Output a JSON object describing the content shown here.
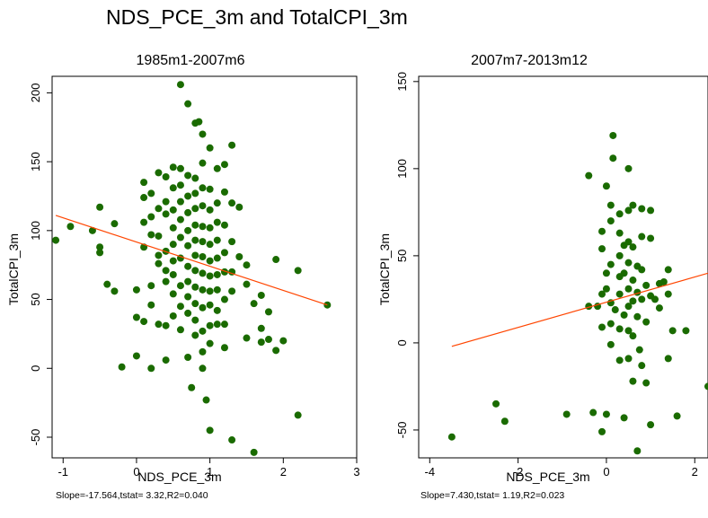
{
  "figure": {
    "title": "NDS_PCE_3m and TotalCPI_3m"
  },
  "colors": {
    "points": "#1a6b00",
    "fit_line": "#ff4500",
    "frame": "#000000"
  },
  "chart_data": [
    {
      "type": "scatter",
      "title": "1985m1-2007m6",
      "xlabel": "NDS_PCE_3m",
      "ylabel": "TotalCPI_3m",
      "xlim": [
        -1.15,
        3.0
      ],
      "ylim": [
        -65,
        212
      ],
      "xticks": [
        -1,
        0,
        1,
        2,
        3
      ],
      "yticks": [
        -50,
        0,
        50,
        100,
        150,
        200
      ],
      "note": "Slope=-17.564,tstat= 3.32,R2=0.040",
      "fit_line": {
        "x": [
          -1.1,
          2.6
        ],
        "y": [
          111,
          46
        ]
      },
      "points": [
        [
          -1.1,
          93
        ],
        [
          -0.9,
          103
        ],
        [
          -0.6,
          100
        ],
        [
          -0.5,
          117
        ],
        [
          -0.5,
          88
        ],
        [
          -0.5,
          84
        ],
        [
          -0.4,
          61
        ],
        [
          -0.3,
          105
        ],
        [
          -0.3,
          56
        ],
        [
          -0.2,
          1
        ],
        [
          0.0,
          37
        ],
        [
          0.0,
          9
        ],
        [
          0.0,
          57
        ],
        [
          0.1,
          135
        ],
        [
          0.1,
          124
        ],
        [
          0.1,
          106
        ],
        [
          0.1,
          88
        ],
        [
          0.1,
          34
        ],
        [
          0.2,
          127
        ],
        [
          0.2,
          110
        ],
        [
          0.2,
          97
        ],
        [
          0.2,
          60
        ],
        [
          0.2,
          46
        ],
        [
          0.2,
          0
        ],
        [
          0.3,
          142
        ],
        [
          0.3,
          116
        ],
        [
          0.3,
          96
        ],
        [
          0.3,
          82
        ],
        [
          0.3,
          76
        ],
        [
          0.3,
          32
        ],
        [
          0.4,
          139
        ],
        [
          0.4,
          121
        ],
        [
          0.4,
          112
        ],
        [
          0.4,
          85
        ],
        [
          0.4,
          71
        ],
        [
          0.4,
          63
        ],
        [
          0.4,
          31
        ],
        [
          0.4,
          6
        ],
        [
          0.5,
          146
        ],
        [
          0.5,
          131
        ],
        [
          0.5,
          115
        ],
        [
          0.5,
          102
        ],
        [
          0.5,
          90
        ],
        [
          0.5,
          78
        ],
        [
          0.5,
          68
        ],
        [
          0.5,
          54
        ],
        [
          0.5,
          38
        ],
        [
          0.6,
          206
        ],
        [
          0.6,
          145
        ],
        [
          0.6,
          133
        ],
        [
          0.6,
          121
        ],
        [
          0.6,
          108
        ],
        [
          0.6,
          95
        ],
        [
          0.6,
          80
        ],
        [
          0.6,
          60
        ],
        [
          0.6,
          45
        ],
        [
          0.6,
          28
        ],
        [
          0.7,
          192
        ],
        [
          0.7,
          140
        ],
        [
          0.7,
          125
        ],
        [
          0.7,
          113
        ],
        [
          0.7,
          100
        ],
        [
          0.7,
          89
        ],
        [
          0.7,
          74
        ],
        [
          0.7,
          63
        ],
        [
          0.7,
          52
        ],
        [
          0.7,
          40
        ],
        [
          0.7,
          8
        ],
        [
          0.75,
          -14
        ],
        [
          0.8,
          178
        ],
        [
          0.8,
          138
        ],
        [
          0.8,
          127
        ],
        [
          0.8,
          116
        ],
        [
          0.8,
          104
        ],
        [
          0.8,
          93
        ],
        [
          0.8,
          82
        ],
        [
          0.8,
          71
        ],
        [
          0.8,
          59
        ],
        [
          0.8,
          47
        ],
        [
          0.8,
          35
        ],
        [
          0.8,
          24
        ],
        [
          0.85,
          179
        ],
        [
          0.9,
          170
        ],
        [
          0.9,
          149
        ],
        [
          0.9,
          131
        ],
        [
          0.9,
          118
        ],
        [
          0.9,
          103
        ],
        [
          0.9,
          92
        ],
        [
          0.9,
          81
        ],
        [
          0.9,
          69
        ],
        [
          0.9,
          57
        ],
        [
          0.9,
          44
        ],
        [
          0.9,
          27
        ],
        [
          0.9,
          12
        ],
        [
          0.9,
          0
        ],
        [
          0.95,
          -23
        ],
        [
          1.0,
          160
        ],
        [
          1.0,
          130
        ],
        [
          1.0,
          115
        ],
        [
          1.0,
          102
        ],
        [
          1.0,
          90
        ],
        [
          1.0,
          78
        ],
        [
          1.0,
          67
        ],
        [
          1.0,
          56
        ],
        [
          1.0,
          46
        ],
        [
          1.0,
          31
        ],
        [
          1.0,
          18
        ],
        [
          1.0,
          -45
        ],
        [
          1.1,
          145
        ],
        [
          1.1,
          120
        ],
        [
          1.1,
          106
        ],
        [
          1.1,
          93
        ],
        [
          1.1,
          80
        ],
        [
          1.1,
          68
        ],
        [
          1.1,
          57
        ],
        [
          1.1,
          42
        ],
        [
          1.1,
          32
        ],
        [
          1.2,
          148
        ],
        [
          1.2,
          128
        ],
        [
          1.2,
          104
        ],
        [
          1.2,
          84
        ],
        [
          1.2,
          70
        ],
        [
          1.2,
          50
        ],
        [
          1.2,
          32
        ],
        [
          1.2,
          15
        ],
        [
          1.3,
          162
        ],
        [
          1.3,
          120
        ],
        [
          1.3,
          92
        ],
        [
          1.3,
          70
        ],
        [
          1.3,
          56
        ],
        [
          1.3,
          -52
        ],
        [
          1.4,
          117
        ],
        [
          1.4,
          81
        ],
        [
          1.5,
          75
        ],
        [
          1.5,
          61
        ],
        [
          1.5,
          22
        ],
        [
          1.6,
          47
        ],
        [
          1.6,
          -61
        ],
        [
          1.7,
          53
        ],
        [
          1.7,
          29
        ],
        [
          1.7,
          19
        ],
        [
          1.8,
          41
        ],
        [
          1.8,
          21
        ],
        [
          1.9,
          79
        ],
        [
          1.9,
          13
        ],
        [
          2.0,
          20
        ],
        [
          2.2,
          71
        ],
        [
          2.2,
          -34
        ],
        [
          2.6,
          46
        ]
      ]
    },
    {
      "type": "scatter",
      "title": "2007m7-2013m12",
      "xlabel": "NDS_PCE_3m",
      "ylabel": "TotalCPI_3m",
      "xlim": [
        -4.25,
        2.3
      ],
      "ylim": [
        -66,
        153
      ],
      "xticks": [
        -4,
        -2,
        0,
        2
      ],
      "yticks": [
        -50,
        0,
        50,
        100,
        150
      ],
      "note": "Slope=7.430,tstat= 1.19,R2=0.023",
      "fit_line": {
        "x": [
          -3.5,
          2.3
        ],
        "y": [
          -2,
          40
        ]
      },
      "points": [
        [
          -3.5,
          -54
        ],
        [
          -2.5,
          -35
        ],
        [
          -2.3,
          -45
        ],
        [
          -0.9,
          -41
        ],
        [
          -0.3,
          -40
        ],
        [
          -0.4,
          96
        ],
        [
          -0.4,
          21
        ],
        [
          -0.2,
          21
        ],
        [
          -0.1,
          64
        ],
        [
          -0.1,
          54
        ],
        [
          -0.1,
          28
        ],
        [
          -0.1,
          9
        ],
        [
          -0.1,
          -51
        ],
        [
          0.0,
          90
        ],
        [
          0.0,
          40
        ],
        [
          0.0,
          31
        ],
        [
          0.0,
          -41
        ],
        [
          0.1,
          79
        ],
        [
          0.1,
          70
        ],
        [
          0.1,
          45
        ],
        [
          0.1,
          23
        ],
        [
          0.1,
          11
        ],
        [
          0.1,
          -1
        ],
        [
          0.15,
          119
        ],
        [
          0.15,
          106
        ],
        [
          0.2,
          19
        ],
        [
          0.3,
          74
        ],
        [
          0.3,
          63
        ],
        [
          0.3,
          50
        ],
        [
          0.3,
          38
        ],
        [
          0.3,
          28
        ],
        [
          0.3,
          8
        ],
        [
          0.3,
          -10
        ],
        [
          0.4,
          56
        ],
        [
          0.4,
          40
        ],
        [
          0.4,
          16
        ],
        [
          0.4,
          -43
        ],
        [
          0.5,
          100
        ],
        [
          0.5,
          76
        ],
        [
          0.5,
          58
        ],
        [
          0.5,
          46
        ],
        [
          0.5,
          31
        ],
        [
          0.5,
          21
        ],
        [
          0.5,
          7
        ],
        [
          0.5,
          -9
        ],
        [
          0.6,
          79
        ],
        [
          0.6,
          55
        ],
        [
          0.6,
          36
        ],
        [
          0.6,
          24
        ],
        [
          0.6,
          4
        ],
        [
          0.6,
          -22
        ],
        [
          0.7,
          44
        ],
        [
          0.7,
          29
        ],
        [
          0.7,
          15
        ],
        [
          0.7,
          -62
        ],
        [
          0.75,
          -4
        ],
        [
          0.8,
          77
        ],
        [
          0.8,
          61
        ],
        [
          0.8,
          42
        ],
        [
          0.8,
          25
        ],
        [
          0.8,
          -13
        ],
        [
          0.9,
          33
        ],
        [
          0.9,
          12
        ],
        [
          0.9,
          -23
        ],
        [
          1.0,
          76
        ],
        [
          1.0,
          60
        ],
        [
          1.0,
          27
        ],
        [
          1.0,
          -47
        ],
        [
          1.1,
          25
        ],
        [
          1.2,
          34
        ],
        [
          1.2,
          20
        ],
        [
          1.3,
          35
        ],
        [
          1.4,
          42
        ],
        [
          1.4,
          28
        ],
        [
          1.4,
          -9
        ],
        [
          1.5,
          7
        ],
        [
          1.6,
          -42
        ],
        [
          1.8,
          7
        ],
        [
          2.3,
          -25
        ]
      ]
    }
  ]
}
